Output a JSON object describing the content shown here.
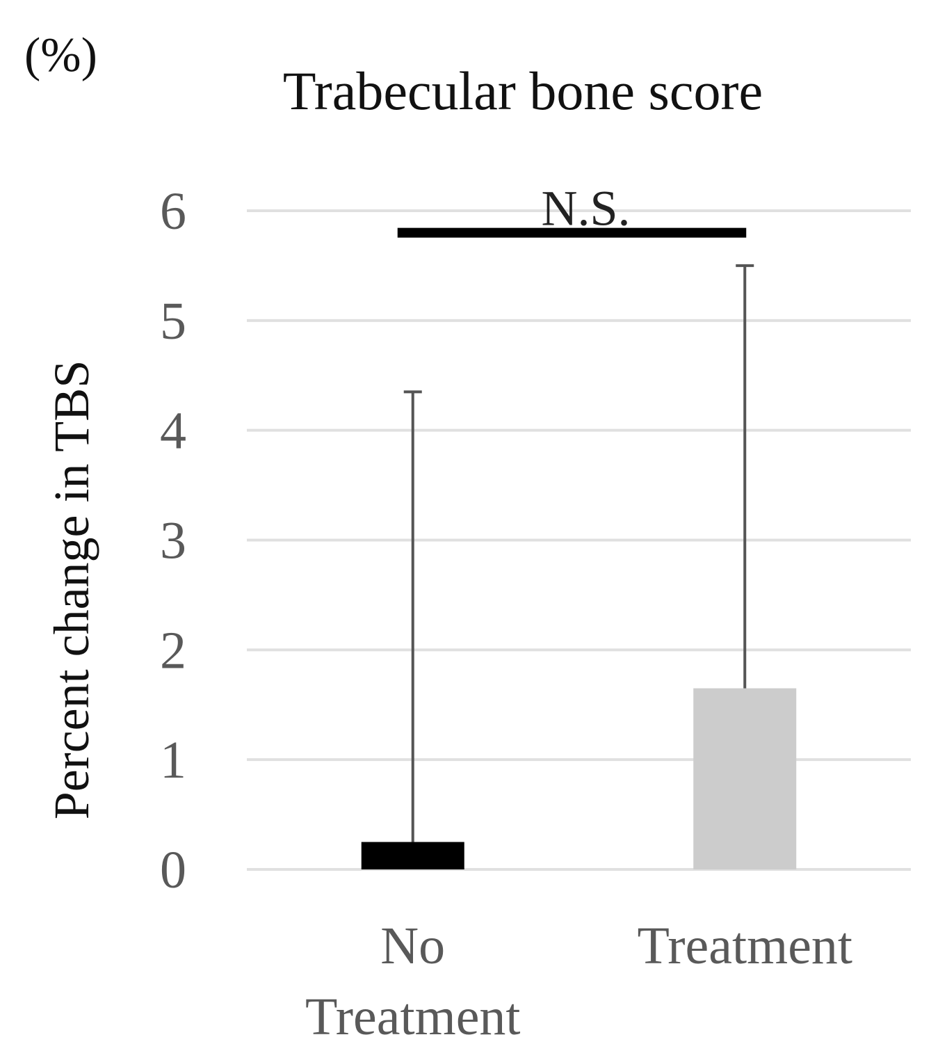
{
  "chart_data": {
    "type": "bar",
    "title": "Trabecular bone score",
    "unit_label": "(%)",
    "ylabel": "Percent change in TBS",
    "xlabel": "",
    "categories": [
      {
        "lines": [
          "No",
          "Treatment"
        ]
      },
      {
        "lines": [
          "Treatment"
        ]
      }
    ],
    "values": [
      0.25,
      1.65
    ],
    "error_upper": [
      4.35,
      5.5
    ],
    "bar_colors": [
      "#000000",
      "#cccccc"
    ],
    "ylim": [
      0,
      6
    ],
    "yticks": [
      "0",
      "1",
      "2",
      "3",
      "4",
      "5",
      "6"
    ],
    "grid": true,
    "significance": {
      "label": "N.S.",
      "level": 5.8
    }
  }
}
